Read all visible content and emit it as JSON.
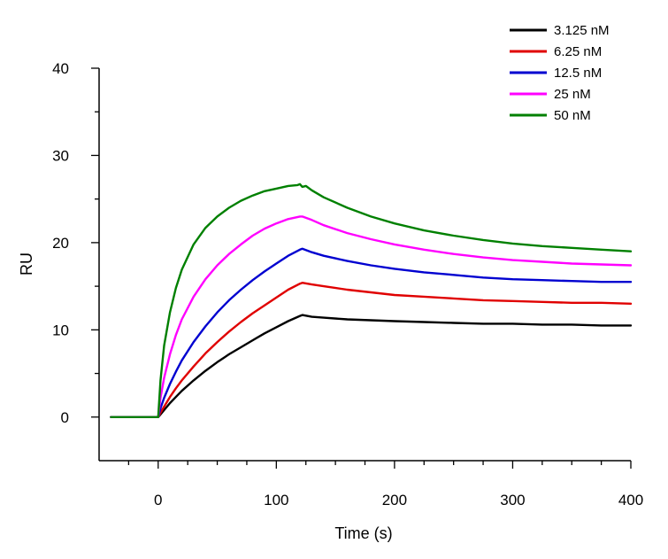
{
  "chart_data": {
    "type": "line",
    "xlabel": "Time (s)",
    "ylabel": "RU",
    "xlim": [
      -50,
      400
    ],
    "ylim": [
      -5,
      40
    ],
    "x_ticks": [
      0,
      100,
      200,
      300,
      400
    ],
    "y_ticks": [
      0,
      10,
      20,
      30,
      40
    ],
    "grid": false,
    "legend_position": "top-right",
    "series": [
      {
        "name": "3.125 nM",
        "color": "#000000",
        "x": [
          -40,
          -30,
          -20,
          -10,
          0,
          2,
          5,
          10,
          15,
          20,
          30,
          40,
          50,
          60,
          70,
          80,
          90,
          100,
          110,
          120,
          122,
          130,
          140,
          160,
          180,
          200,
          225,
          250,
          275,
          300,
          325,
          350,
          375,
          400
        ],
        "y": [
          0,
          0,
          0,
          0,
          0,
          0.3,
          0.8,
          1.6,
          2.3,
          3.0,
          4.2,
          5.3,
          6.3,
          7.2,
          8.0,
          8.8,
          9.6,
          10.3,
          11.0,
          11.6,
          11.7,
          11.5,
          11.4,
          11.2,
          11.1,
          11.0,
          10.9,
          10.8,
          10.7,
          10.7,
          10.6,
          10.6,
          10.5,
          10.5
        ]
      },
      {
        "name": "6.25 nM",
        "color": "#e00000",
        "x": [
          -40,
          -30,
          -20,
          -10,
          0,
          2,
          5,
          10,
          15,
          20,
          30,
          40,
          50,
          60,
          70,
          80,
          90,
          100,
          110,
          120,
          122,
          130,
          140,
          160,
          180,
          200,
          225,
          250,
          275,
          300,
          325,
          350,
          375,
          400
        ],
        "y": [
          0,
          0,
          0,
          0,
          0,
          0.5,
          1.2,
          2.3,
          3.3,
          4.2,
          5.8,
          7.3,
          8.6,
          9.8,
          10.9,
          11.9,
          12.8,
          13.7,
          14.6,
          15.3,
          15.4,
          15.2,
          15.0,
          14.6,
          14.3,
          14.0,
          13.8,
          13.6,
          13.4,
          13.3,
          13.2,
          13.1,
          13.1,
          13.0
        ]
      },
      {
        "name": "12.5 nM",
        "color": "#0000d0",
        "x": [
          -40,
          -30,
          -20,
          -10,
          0,
          2,
          5,
          10,
          15,
          20,
          30,
          40,
          50,
          60,
          70,
          80,
          90,
          100,
          110,
          120,
          122,
          130,
          140,
          160,
          180,
          200,
          225,
          250,
          275,
          300,
          325,
          350,
          375,
          400
        ],
        "y": [
          0,
          0,
          0,
          0,
          0,
          1.0,
          2.2,
          3.8,
          5.2,
          6.5,
          8.6,
          10.4,
          12.0,
          13.4,
          14.6,
          15.7,
          16.7,
          17.6,
          18.5,
          19.2,
          19.3,
          18.9,
          18.5,
          17.9,
          17.4,
          17.0,
          16.6,
          16.3,
          16.0,
          15.8,
          15.7,
          15.6,
          15.5,
          15.5
        ]
      },
      {
        "name": "25 nM",
        "color": "#ff00ff",
        "x": [
          -40,
          -30,
          -20,
          -10,
          0,
          2,
          5,
          10,
          15,
          20,
          30,
          40,
          50,
          60,
          70,
          80,
          90,
          100,
          110,
          120,
          122,
          130,
          140,
          160,
          180,
          200,
          225,
          250,
          275,
          300,
          325,
          350,
          375,
          400
        ],
        "y": [
          0,
          0,
          0,
          0,
          0,
          2.2,
          4.5,
          7.2,
          9.4,
          11.2,
          13.8,
          15.8,
          17.4,
          18.7,
          19.8,
          20.8,
          21.6,
          22.2,
          22.7,
          23.0,
          23.0,
          22.6,
          22.0,
          21.1,
          20.4,
          19.8,
          19.2,
          18.7,
          18.3,
          18.0,
          17.8,
          17.6,
          17.5,
          17.4
        ]
      },
      {
        "name": "50 nM",
        "color": "#008000",
        "x": [
          -40,
          -30,
          -20,
          -10,
          0,
          2,
          5,
          10,
          15,
          20,
          30,
          40,
          50,
          60,
          70,
          80,
          90,
          100,
          110,
          118,
          120,
          122,
          125,
          130,
          140,
          160,
          180,
          200,
          225,
          250,
          275,
          300,
          325,
          350,
          375,
          400
        ],
        "y": [
          0,
          0,
          0,
          0,
          0,
          4.2,
          8.2,
          12.0,
          14.8,
          16.9,
          19.8,
          21.7,
          23.0,
          24.0,
          24.8,
          25.4,
          25.9,
          26.2,
          26.5,
          26.6,
          26.7,
          26.4,
          26.5,
          26.0,
          25.2,
          24.0,
          23.0,
          22.2,
          21.4,
          20.8,
          20.3,
          19.9,
          19.6,
          19.4,
          19.2,
          19.0
        ]
      }
    ]
  }
}
